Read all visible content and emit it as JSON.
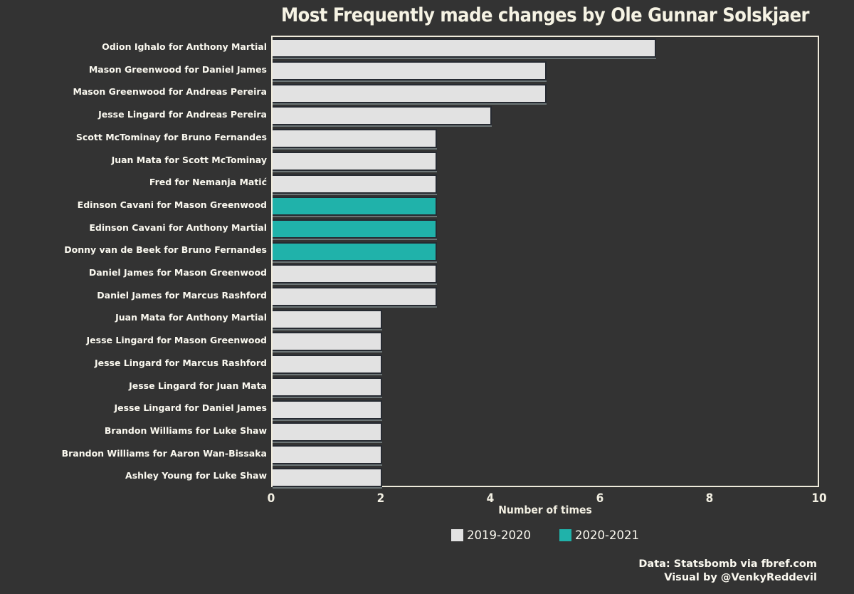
{
  "title": "Most Frequently made changes by Ole Gunnar Solskjaer",
  "credits": {
    "line1": "Data: Statsbomb via fbref.com",
    "line2": "Visual by @VenkyReddevil"
  },
  "colors": {
    "background": "#333333",
    "bar_2019_2020": "#e2e2e2",
    "bar_2020_2021": "#20b2aa",
    "bar_edge": "#262a31",
    "frame": "#efebdc",
    "text_cream": "#f2efe2",
    "text_white": "#fbf9f0"
  },
  "chart_data": {
    "type": "bar",
    "orientation": "horizontal",
    "title": "Most Frequently made changes by Ole Gunnar Solskjaer",
    "xlabel": "Number of times",
    "ylabel": "",
    "xlim": [
      0,
      10
    ],
    "xticks": [
      0,
      2,
      4,
      6,
      8,
      10
    ],
    "grid": false,
    "legend_position": "bottom-center",
    "legend": [
      {
        "label": "2019-2020",
        "color": "#e2e2e2"
      },
      {
        "label": "2020-2021",
        "color": "#20b2aa"
      }
    ],
    "bars": [
      {
        "label": "Odion Ighalo for Anthony Martial",
        "value": 7,
        "season": "2019-2020"
      },
      {
        "label": "Mason Greenwood for Daniel James",
        "value": 5,
        "season": "2019-2020"
      },
      {
        "label": "Mason Greenwood for Andreas Pereira",
        "value": 5,
        "season": "2019-2020"
      },
      {
        "label": "Jesse Lingard for Andreas Pereira",
        "value": 4,
        "season": "2019-2020"
      },
      {
        "label": "Scott McTominay for Bruno Fernandes",
        "value": 3,
        "season": "2019-2020"
      },
      {
        "label": "Juan Mata for Scott McTominay",
        "value": 3,
        "season": "2019-2020"
      },
      {
        "label": "Fred for Nemanja Matić",
        "value": 3,
        "season": "2019-2020"
      },
      {
        "label": "Edinson Cavani for Mason Greenwood",
        "value": 3,
        "season": "2020-2021"
      },
      {
        "label": "Edinson Cavani for Anthony Martial",
        "value": 3,
        "season": "2020-2021"
      },
      {
        "label": "Donny van de Beek for Bruno Fernandes",
        "value": 3,
        "season": "2020-2021"
      },
      {
        "label": "Daniel James for Mason Greenwood",
        "value": 3,
        "season": "2019-2020"
      },
      {
        "label": "Daniel James for Marcus Rashford",
        "value": 3,
        "season": "2019-2020"
      },
      {
        "label": "Juan Mata for Anthony Martial",
        "value": 2,
        "season": "2019-2020"
      },
      {
        "label": "Jesse Lingard for Mason Greenwood",
        "value": 2,
        "season": "2019-2020"
      },
      {
        "label": "Jesse Lingard for Marcus Rashford",
        "value": 2,
        "season": "2019-2020"
      },
      {
        "label": "Jesse Lingard for Juan Mata",
        "value": 2,
        "season": "2019-2020"
      },
      {
        "label": "Jesse Lingard for Daniel James",
        "value": 2,
        "season": "2019-2020"
      },
      {
        "label": "Brandon Williams for Luke Shaw",
        "value": 2,
        "season": "2019-2020"
      },
      {
        "label": "Brandon Williams for Aaron Wan-Bissaka",
        "value": 2,
        "season": "2019-2020"
      },
      {
        "label": "Ashley Young for Luke Shaw",
        "value": 2,
        "season": "2019-2020"
      }
    ]
  }
}
